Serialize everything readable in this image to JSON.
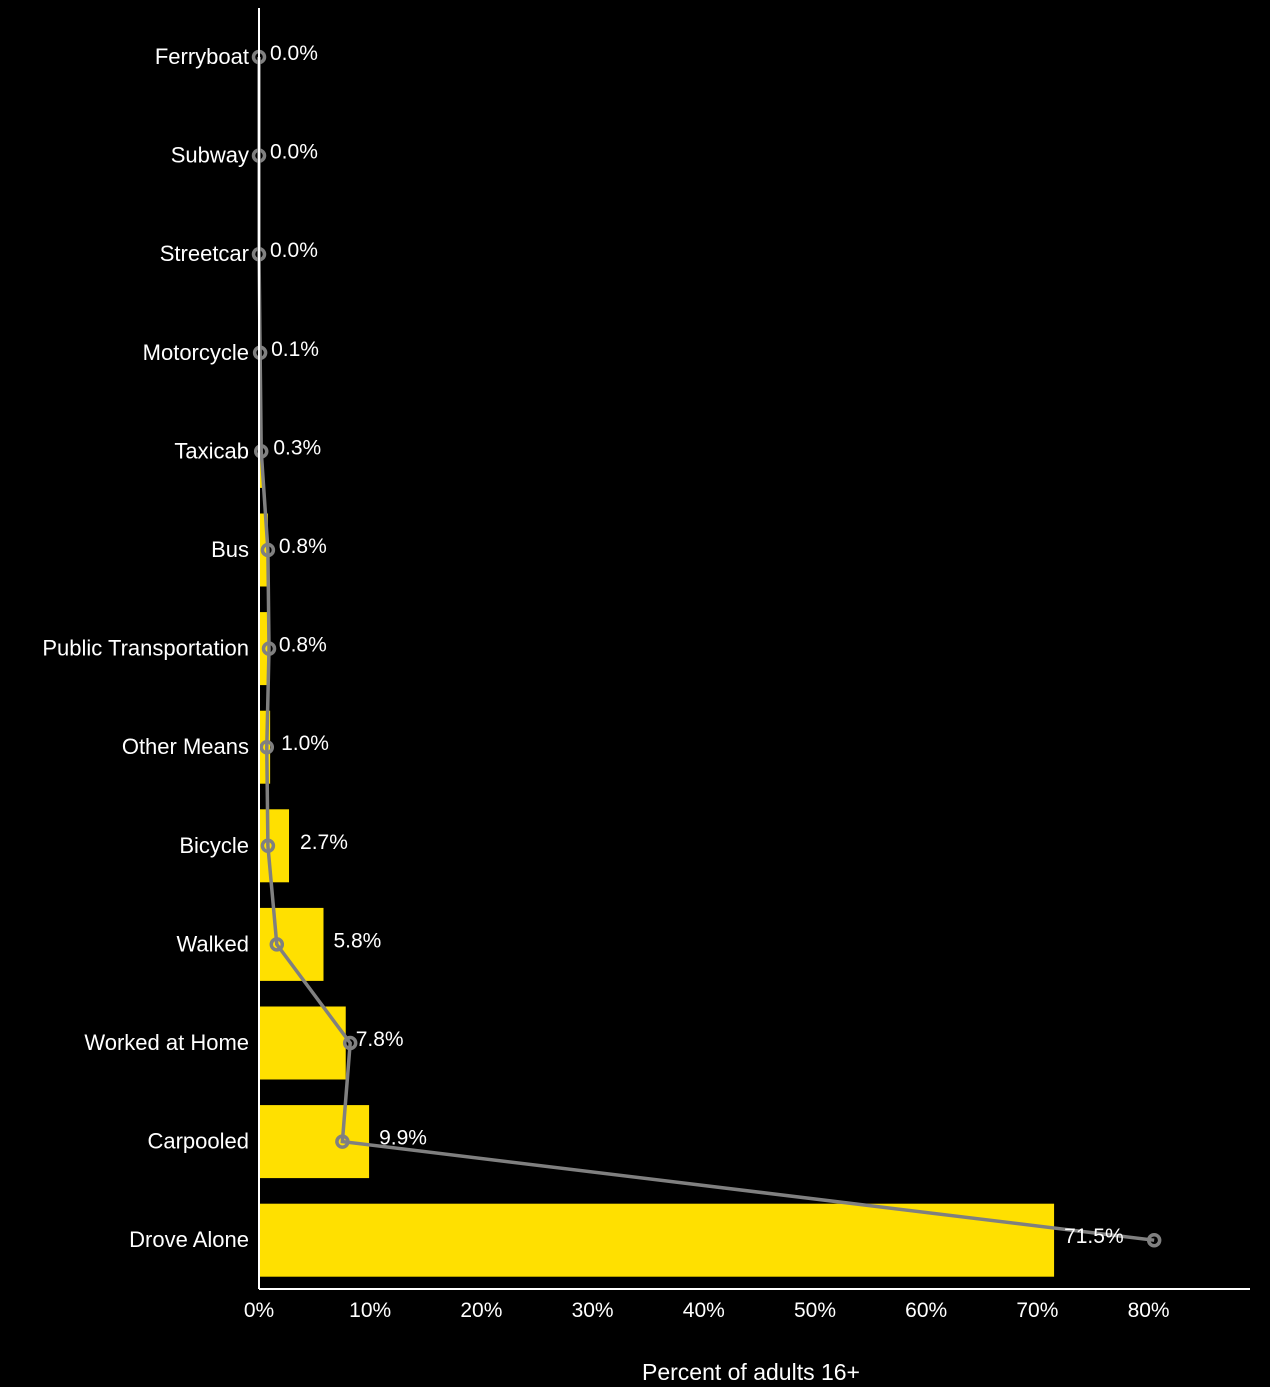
{
  "chart_data": {
    "type": "bar",
    "orientation": "horizontal",
    "categories": [
      "Ferryboat",
      "Subway",
      "Streetcar",
      "Motorcycle",
      "Taxicab",
      "Bus",
      "Public Transportation",
      "Other Means",
      "Bicycle",
      "Walked",
      "Worked at Home",
      "Carpooled",
      "Drove Alone"
    ],
    "series": [
      {
        "type": "bar",
        "values": [
          0.0,
          0.0,
          0.0,
          0.1,
          0.3,
          0.8,
          0.8,
          1.0,
          2.7,
          5.8,
          7.8,
          9.9,
          71.5
        ],
        "value_labels": [
          "0.0%",
          "0.0%",
          "0.0%",
          "0.1%",
          "0.3%",
          "0.8%",
          "0.8%",
          "1.0%",
          "2.7%",
          "5.8%",
          "7.8%",
          "9.9%",
          "71.5%"
        ]
      },
      {
        "type": "line",
        "values": [
          0.0,
          0.0,
          0.0,
          0.1,
          0.2,
          0.8,
          0.9,
          0.7,
          0.8,
          1.6,
          8.2,
          7.5,
          80.5
        ]
      }
    ],
    "xlabel": "Percent of adults 16+",
    "ylabel": "",
    "xlim": [
      0,
      80
    ],
    "x_ticks": [
      "0%",
      "10%",
      "20%",
      "30%",
      "40%",
      "50%",
      "60%",
      "70%",
      "80%"
    ],
    "x_tick_values": [
      0,
      10,
      20,
      30,
      40,
      50,
      60,
      70,
      80
    ],
    "grid": false,
    "legend": "none",
    "colors": {
      "background": "#000000",
      "bar": "#FFE000",
      "line": "#808080",
      "axis": "#ffffff",
      "text": "#ffffff"
    }
  }
}
